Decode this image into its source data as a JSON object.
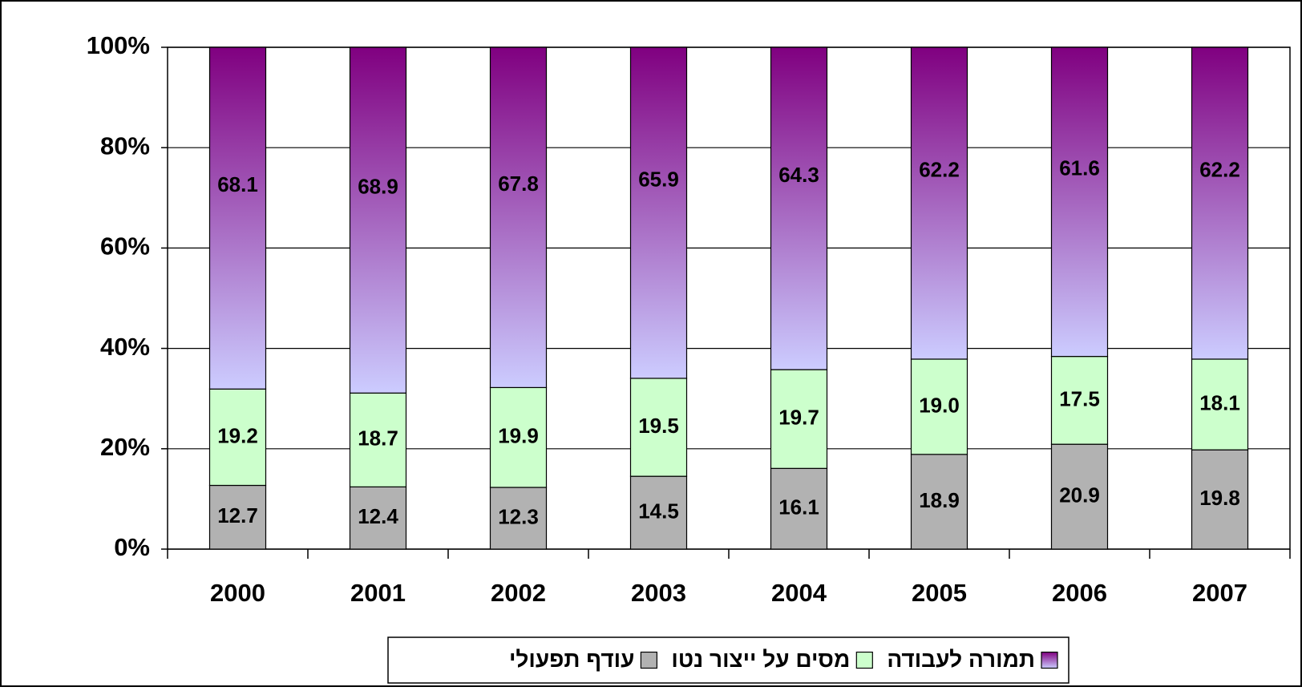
{
  "chart_data": {
    "type": "bar",
    "stacked": "percent",
    "categories": [
      "2000",
      "2001",
      "2002",
      "2003",
      "2004",
      "2005",
      "2006",
      "2007"
    ],
    "series": [
      {
        "name": "עודף תפעולי",
        "color": "#b2b2b2",
        "values": [
          12.7,
          12.4,
          12.3,
          14.5,
          16.1,
          18.9,
          20.9,
          19.8
        ],
        "value_labels": [
          "12.7",
          "12.4",
          "12.3",
          "14.5",
          "16.1",
          "18.9",
          "20.9",
          "19.8"
        ]
      },
      {
        "name": "מסים על ייצור נטו",
        "color": "#ccffcc",
        "values": [
          19.2,
          18.7,
          19.9,
          19.5,
          19.7,
          19.0,
          17.5,
          18.1
        ],
        "value_labels": [
          "19.2",
          "18.7",
          "19.9",
          "19.5",
          "19.7",
          "19.0",
          "17.5",
          "18.1"
        ]
      },
      {
        "name": "תמורה לעבודה",
        "color": "#800080",
        "gradient_to": "#ccccff",
        "values": [
          68.1,
          68.9,
          67.8,
          65.9,
          64.3,
          62.2,
          61.6,
          62.2
        ],
        "value_labels": [
          "68.1",
          "68.9",
          "67.8",
          "65.9",
          "64.3",
          "62.2",
          "61.6",
          "62.2"
        ]
      }
    ],
    "ylim": [
      0,
      100
    ],
    "yticks": [
      {
        "value": 0,
        "label": "0%"
      },
      {
        "value": 20,
        "label": "20%"
      },
      {
        "value": 40,
        "label": "40%"
      },
      {
        "value": 60,
        "label": "60%"
      },
      {
        "value": 80,
        "label": "80%"
      },
      {
        "value": 100,
        "label": "100%"
      }
    ],
    "grid": true,
    "legend": "bottom"
  }
}
